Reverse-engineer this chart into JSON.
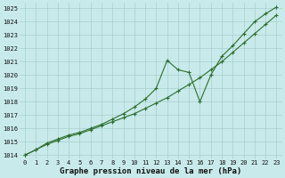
{
  "background_color": "#c8eaea",
  "grid_color": "#a0c8c8",
  "line_color": "#2d6e2d",
  "marker_color": "#2d6e2d",
  "xlabel": "Graphe pression niveau de la mer (hPa)",
  "xlim": [
    -0.5,
    23.5
  ],
  "ylim": [
    1013.7,
    1025.4
  ],
  "yticks": [
    1014,
    1015,
    1016,
    1017,
    1018,
    1019,
    1020,
    1021,
    1022,
    1023,
    1024,
    1025
  ],
  "xticks": [
    0,
    1,
    2,
    3,
    4,
    5,
    6,
    7,
    8,
    9,
    10,
    11,
    12,
    13,
    14,
    15,
    16,
    17,
    18,
    19,
    20,
    21,
    22,
    23
  ],
  "line1_x": [
    0,
    1,
    2,
    3,
    4,
    5,
    6,
    7,
    8,
    9,
    10,
    11,
    12,
    13,
    14,
    15,
    16,
    17,
    18,
    19,
    20,
    21,
    22,
    23
  ],
  "line1_y": [
    1014.0,
    1014.4,
    1014.8,
    1015.1,
    1015.4,
    1015.6,
    1015.9,
    1016.2,
    1016.5,
    1016.8,
    1017.1,
    1017.5,
    1017.9,
    1018.3,
    1018.8,
    1019.3,
    1019.8,
    1020.4,
    1021.0,
    1021.7,
    1022.4,
    1023.1,
    1023.8,
    1024.5
  ],
  "line2_x": [
    0,
    1,
    2,
    3,
    4,
    5,
    6,
    7,
    8,
    9,
    10,
    11,
    12,
    13,
    14,
    15,
    16,
    17,
    18,
    19,
    20,
    21,
    22,
    23
  ],
  "line2_y": [
    1014.0,
    1014.4,
    1014.9,
    1015.2,
    1015.5,
    1015.7,
    1016.0,
    1016.3,
    1016.7,
    1017.1,
    1017.6,
    1018.2,
    1019.0,
    1021.1,
    1020.4,
    1020.2,
    1018.0,
    1020.0,
    1021.4,
    1022.2,
    1023.1,
    1024.0,
    1024.6,
    1025.1
  ],
  "tick_fontsize": 5.0,
  "label_fontsize": 6.5,
  "linewidth": 0.8,
  "markersize": 3.0,
  "markeredgewidth": 0.8
}
